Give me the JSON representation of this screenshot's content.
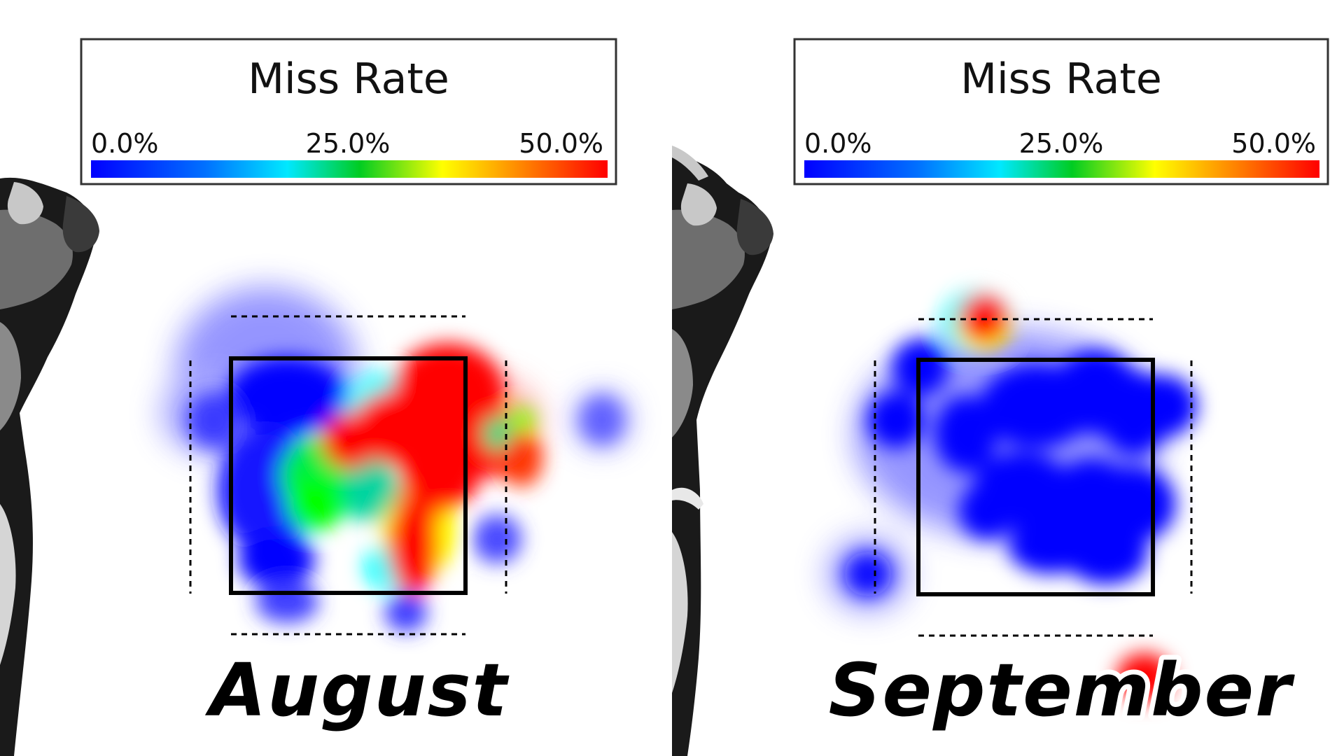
{
  "chart_data": [
    {
      "type": "heatmap",
      "title": "Miss Rate",
      "panel_label": "August",
      "colorbar": {
        "label": "Miss Rate",
        "min": 0.0,
        "max": 50.0,
        "unit": "%",
        "tick_labels": [
          "0.0%",
          "25.0%",
          "50.0%"
        ],
        "colors": [
          "#0000ff",
          "#00ffff",
          "#00cc00",
          "#ffff00",
          "#ff0000"
        ]
      },
      "grid": false,
      "axes_visible": false,
      "strike_zone": "solid box with dashed outer shadow zone",
      "hot_spots": [
        {
          "zone": "heart",
          "miss_rate": 50.0
        },
        {
          "zone": "up-in",
          "miss_rate": 50.0
        },
        {
          "zone": "middle-in edge",
          "miss_rate": 50.0
        },
        {
          "zone": "low-middle",
          "miss_rate": 45.0
        },
        {
          "zone": "middle-left",
          "miss_rate": 25.0
        },
        {
          "zone": "up-away",
          "miss_rate": 0.0
        },
        {
          "zone": "down-away",
          "miss_rate": 0.0
        },
        {
          "zone": "out of zone, away",
          "miss_rate": 0.0
        },
        {
          "zone": "out of zone, in",
          "miss_rate": 0.0
        }
      ]
    },
    {
      "type": "heatmap",
      "title": "Miss Rate",
      "panel_label": "September",
      "colorbar": {
        "label": "Miss Rate",
        "min": 0.0,
        "max": 50.0,
        "unit": "%",
        "tick_labels": [
          "0.0%",
          "25.0%",
          "50.0%"
        ],
        "colors": [
          "#0000ff",
          "#00ffff",
          "#00cc00",
          "#ffff00",
          "#ff0000"
        ]
      },
      "grid": false,
      "axes_visible": false,
      "strike_zone": "solid box with dashed outer shadow zone",
      "hot_spots": [
        {
          "zone": "above zone, middle-away",
          "miss_rate": 50.0
        },
        {
          "zone": "below zone, in",
          "miss_rate": 50.0
        },
        {
          "zone": "up-in",
          "miss_rate": 0.0
        },
        {
          "zone": "middle-in",
          "miss_rate": 0.0
        },
        {
          "zone": "low",
          "miss_rate": 0.0
        },
        {
          "zone": "up-away",
          "miss_rate": 0.0
        },
        {
          "zone": "middle-away",
          "miss_rate": 0.0
        },
        {
          "zone": "out of zone, low-away",
          "miss_rate": 0.0
        }
      ]
    }
  ],
  "colors": {
    "background": "#ffffff",
    "zone_border": "#000000",
    "legend_border": "#333333",
    "batter_dark": "#1a1a1a",
    "batter_mid": "#6e6e6e",
    "batter_light": "#c8c8c8"
  },
  "panels": [
    {
      "legend_title": "Miss Rate",
      "ticks": [
        "0.0%",
        "25.0%",
        "50.0%"
      ],
      "label": "August"
    },
    {
      "legend_title": "Miss Rate",
      "ticks": [
        "0.0%",
        "25.0%",
        "50.0%"
      ],
      "label": "September"
    }
  ]
}
